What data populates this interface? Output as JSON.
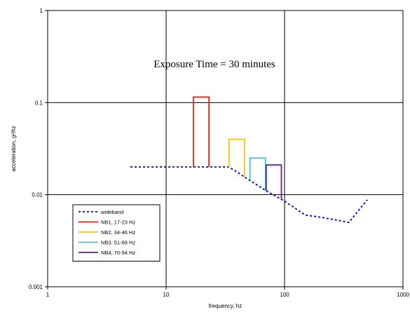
{
  "chart_data": {
    "type": "line",
    "annotation": "Exposure Time = 30 minutes",
    "xlabel": "frequency, hz",
    "ylabel": "acceleration, g²/hz",
    "xscale": "log",
    "yscale": "log",
    "xlim": [
      1,
      1000
    ],
    "ylim": [
      0.001,
      1
    ],
    "x_ticks": [
      1,
      10,
      100,
      1000
    ],
    "x_tick_labels": [
      "1",
      "10",
      "100",
      "1000"
    ],
    "y_ticks": [
      0.001,
      0.01,
      0.1,
      1
    ],
    "y_tick_labels": [
      "0.001",
      "0.01",
      "0.1",
      "1"
    ],
    "grid": true,
    "legend_position": "bottom-left",
    "series": [
      {
        "name": "wideband",
        "color": "#1a1aa0",
        "dash": true,
        "x": [
          5,
          34,
          40,
          50,
          60,
          70,
          80,
          100,
          150,
          200,
          300,
          350,
          400,
          500
        ],
        "y": [
          0.02,
          0.02,
          0.0175,
          0.0145,
          0.0125,
          0.011,
          0.01,
          0.0085,
          0.006,
          0.0057,
          0.0052,
          0.005,
          0.0062,
          0.0088
        ]
      },
      {
        "name": "NB1, 17-23 Hz",
        "color": "#e8231a",
        "dash": false,
        "x": [
          17,
          17,
          23,
          23
        ],
        "y": [
          0.02,
          0.115,
          0.115,
          0.02
        ]
      },
      {
        "name": "NB2, 34-46 Hz",
        "color": "#f2c40f",
        "dash": false,
        "x": [
          34,
          34,
          46,
          46
        ],
        "y": [
          0.02,
          0.04,
          0.04,
          0.0155
        ]
      },
      {
        "name": "NB3, 51-69 Hz",
        "color": "#37c6d8",
        "dash": false,
        "x": [
          51,
          51,
          69,
          69
        ],
        "y": [
          0.0145,
          0.025,
          0.025,
          0.011
        ]
      },
      {
        "name": "NB4, 70-94 Hz",
        "color": "#6b1a8a",
        "dash": false,
        "x": [
          70,
          70,
          94,
          94
        ],
        "y": [
          0.011,
          0.021,
          0.021,
          0.0088
        ]
      }
    ]
  }
}
